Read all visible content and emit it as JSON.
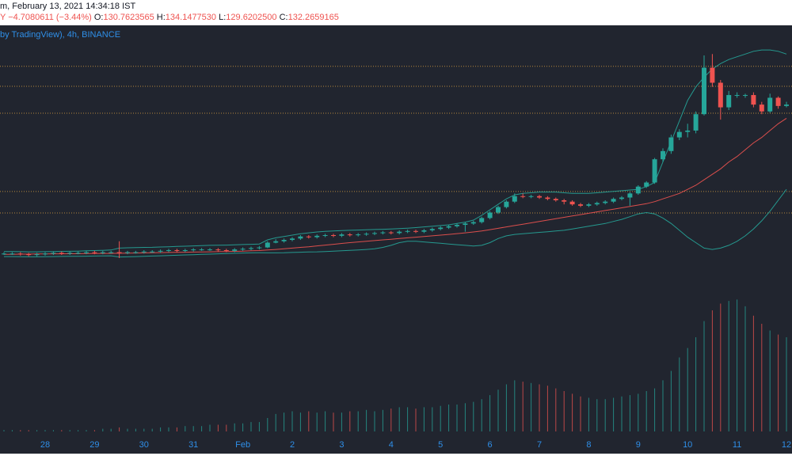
{
  "header": {
    "timestamp": "m, February 13, 2021 14:34:18 IST",
    "symbol_tail": "Y",
    "change": "−4.7080611 (−3.44%)",
    "ohlc": [
      {
        "key": "O:",
        "value": "130.7623565"
      },
      {
        "key": "H:",
        "value": "134.1477530"
      },
      {
        "key": "L:",
        "value": "129.6202500"
      },
      {
        "key": "C:",
        "value": "132.2659165"
      }
    ]
  },
  "chart_data": {
    "type": "candlestick",
    "legend": "by TradingView), 4h, BINANCE",
    "x_labels": [
      "28",
      "29",
      "30",
      "31",
      "Feb",
      "2",
      "3",
      "4",
      "5",
      "6",
      "7",
      "8",
      "9",
      "10",
      "11",
      "12"
    ],
    "up_color": "#26a69a",
    "down_color": "#ef5350",
    "ylim": [
      0,
      190
    ],
    "volume_ylim": [
      0,
      100
    ],
    "open": [
      23,
      23,
      23,
      22.5,
      22,
      22.5,
      23,
      23.5,
      23,
      23.5,
      23.5,
      24,
      23.5,
      24,
      24,
      23.5,
      24,
      24,
      24.5,
      24.5,
      25,
      25.5,
      25,
      25.5,
      26,
      26,
      26,
      25.5,
      25,
      26,
      26.5,
      27,
      27.5,
      31,
      32,
      33,
      34,
      35.5,
      35,
      36,
      36.5,
      36,
      37,
      36.5,
      37,
      37.5,
      38,
      38.5,
      38,
      39,
      39.5,
      39,
      40,
      41,
      42,
      43,
      44,
      45,
      46,
      49,
      53,
      57,
      61,
      65,
      64.5,
      65,
      64,
      63,
      62,
      61,
      59,
      58,
      59,
      60,
      61,
      63,
      64,
      67,
      72,
      75,
      92,
      98,
      108,
      112,
      113,
      125,
      159,
      148,
      130,
      139,
      139,
      139,
      132,
      127,
      137,
      131
    ],
    "high": [
      24,
      24,
      24,
      23.5,
      23.5,
      24,
      24.5,
      24.5,
      24.5,
      24.5,
      25,
      25,
      25,
      25,
      32,
      25,
      25,
      25.5,
      25.5,
      26,
      26.5,
      26.5,
      26.5,
      27,
      27,
      27,
      27,
      26.5,
      27,
      27.5,
      28,
      28.5,
      32,
      33.5,
      34,
      35,
      36.5,
      36.5,
      37,
      37.5,
      37.5,
      38,
      38,
      38,
      38.5,
      39,
      39.5,
      39.5,
      40,
      40.5,
      40.5,
      41,
      42,
      43,
      44,
      45,
      46,
      47,
      50,
      54,
      58,
      62,
      67,
      67,
      66,
      66,
      65,
      64,
      63,
      62,
      60,
      60,
      61,
      62,
      64,
      65,
      68,
      73,
      76,
      93,
      100,
      110,
      114,
      118,
      127,
      168,
      169,
      150,
      142,
      141,
      140,
      141,
      134,
      140,
      138,
      134
    ],
    "low": [
      22,
      22,
      21.5,
      21,
      21,
      21.5,
      22,
      22,
      22,
      22.5,
      22.5,
      22.5,
      22.5,
      23,
      19.7,
      22.5,
      23,
      23,
      23.5,
      23.5,
      24,
      24,
      24,
      24.5,
      25,
      25,
      24.5,
      24,
      24,
      25,
      25.5,
      26,
      27,
      30.5,
      31,
      32,
      33,
      34,
      34,
      35,
      35,
      35,
      35.5,
      35.5,
      36,
      36.5,
      37,
      37,
      37,
      38,
      38,
      38,
      39,
      40,
      41,
      42,
      39,
      44,
      45,
      48,
      52,
      56,
      60,
      63.5,
      63.5,
      63,
      62,
      61,
      59,
      58,
      57,
      57,
      58,
      59,
      60,
      62,
      58,
      66,
      71,
      74,
      90,
      96,
      106,
      108,
      111,
      124,
      145,
      121,
      128,
      137,
      137,
      130,
      125,
      126,
      129,
      130
    ],
    "close": [
      23,
      23,
      22.5,
      22,
      22.5,
      23,
      23.5,
      23,
      23.5,
      23.5,
      24,
      23.5,
      24,
      24,
      23.5,
      24,
      24,
      24.5,
      24.5,
      25,
      25.5,
      25,
      25.5,
      26,
      26,
      26,
      25.5,
      25,
      26,
      26.5,
      27,
      27.5,
      31,
      32,
      33,
      34,
      35.5,
      35,
      36,
      36.5,
      36,
      37,
      36.5,
      37,
      37.5,
      38,
      38.5,
      38,
      39,
      39.5,
      39,
      40,
      41,
      42,
      43,
      44,
      45,
      46,
      49,
      53,
      57,
      61,
      65,
      64.5,
      65,
      64,
      63,
      62,
      61,
      59,
      58,
      59,
      60,
      61,
      63,
      64,
      67,
      72,
      75,
      92,
      98,
      108,
      112,
      113,
      125,
      159,
      148,
      130,
      139,
      139,
      139,
      132,
      127,
      137,
      131,
      132
    ],
    "volume": [
      1,
      1,
      1,
      1,
      1,
      1,
      1,
      1,
      1,
      1,
      1,
      1,
      2,
      2,
      3,
      2,
      2,
      2,
      2,
      3,
      3,
      3,
      4,
      4,
      4,
      5,
      5,
      5,
      6,
      6,
      7,
      7,
      10,
      13,
      14,
      15,
      14,
      15,
      14,
      15,
      14,
      14,
      15,
      15,
      16,
      15,
      16,
      17,
      18,
      18,
      17,
      18,
      18,
      19,
      20,
      20,
      21,
      22,
      24,
      27,
      31,
      35,
      38,
      37,
      36,
      35,
      34,
      32,
      30,
      28,
      26,
      25,
      24,
      24,
      25,
      26,
      27,
      28,
      30,
      32,
      38,
      45,
      55,
      62,
      70,
      82,
      90,
      95,
      97,
      98,
      93,
      86,
      80,
      75,
      72,
      70
    ],
    "ma": {
      "color": "#ef5350",
      "values": [
        22.5,
        22.5,
        22.6,
        22.6,
        22.7,
        22.7,
        22.8,
        22.8,
        22.9,
        22.9,
        23,
        23,
        23.1,
        23.1,
        23.2,
        23.3,
        23.4,
        23.5,
        23.6,
        23.7,
        23.8,
        23.9,
        24,
        24.1,
        24.2,
        24.3,
        24.4,
        24.5,
        24.6,
        24.8,
        25,
        25.2,
        25.6,
        26,
        26.5,
        27,
        27.5,
        28,
        28.6,
        29.2,
        29.8,
        30.4,
        31,
        31.5,
        32,
        32.5,
        33,
        33.5,
        34,
        34.5,
        35,
        35.5,
        36,
        36.5,
        37,
        37.6,
        38.2,
        38.8,
        39.5,
        40.5,
        41.5,
        42.5,
        43.5,
        44.5,
        45.5,
        46.5,
        47.5,
        48.5,
        49.5,
        50.5,
        51.5,
        52.5,
        53.5,
        54.5,
        55.5,
        56.5,
        57.5,
        58.5,
        59.5,
        61,
        63,
        65,
        67,
        70,
        73,
        77,
        81,
        85,
        90,
        94,
        99,
        104,
        108,
        113,
        118,
        122
      ]
    },
    "bands": {
      "color": "#26a69a",
      "upper": [
        24.5,
        24.5,
        24.4,
        24.3,
        24.3,
        24.4,
        24.5,
        24.6,
        24.7,
        24.8,
        25,
        25.2,
        25.4,
        25.6,
        27,
        27.2,
        27.4,
        27.5,
        27.6,
        27.8,
        28,
        28.2,
        28.4,
        28.6,
        28.8,
        29,
        29.1,
        29.2,
        29.4,
        29.6,
        29.8,
        30,
        33,
        34.5,
        35.5,
        36.5,
        37.5,
        38.2,
        38.8,
        39.2,
        39.5,
        39.8,
        40,
        40.2,
        40.4,
        40.6,
        40.8,
        41,
        41.3,
        41.6,
        42,
        42.5,
        43,
        43.5,
        44,
        45,
        46,
        47.5,
        51,
        55,
        59,
        63,
        66,
        67,
        67.5,
        68,
        68,
        68,
        67.5,
        67,
        67,
        67,
        67.5,
        68,
        68.5,
        69,
        69.5,
        70,
        72,
        75,
        90,
        105,
        120,
        135,
        145,
        152,
        158,
        162,
        165,
        167,
        169,
        171,
        172,
        172,
        171,
        169
      ],
      "lower": [
        20.8,
        20.8,
        20.7,
        20.6,
        20.6,
        20.7,
        20.8,
        20.9,
        21,
        21,
        21.1,
        21.2,
        21.3,
        21.4,
        20.5,
        20.6,
        20.8,
        21,
        21.2,
        21.4,
        21.6,
        21.8,
        22,
        22.2,
        22.4,
        22.6,
        22.8,
        23,
        23.2,
        23.4,
        23.5,
        23.6,
        23.5,
        23.5,
        23.6,
        23.8,
        24,
        24.2,
        24.3,
        24.5,
        24.8,
        25,
        25.3,
        25.6,
        26,
        26.5,
        27.5,
        29,
        31,
        32,
        32,
        31.5,
        31,
        30.5,
        30,
        29.5,
        29,
        28.5,
        29,
        31,
        34,
        36,
        37,
        37.5,
        38,
        38.5,
        39,
        39.5,
        40,
        41,
        42,
        43,
        44,
        45,
        46.5,
        48,
        50,
        52,
        53,
        52,
        49,
        45,
        40,
        35,
        31,
        27,
        26,
        27,
        29,
        32,
        36,
        41,
        47,
        54,
        62,
        70
      ]
    },
    "levels": [
      160,
      145.4,
      125.7,
      68.4,
      52.7
    ],
    "level_color": "#b5863c"
  }
}
